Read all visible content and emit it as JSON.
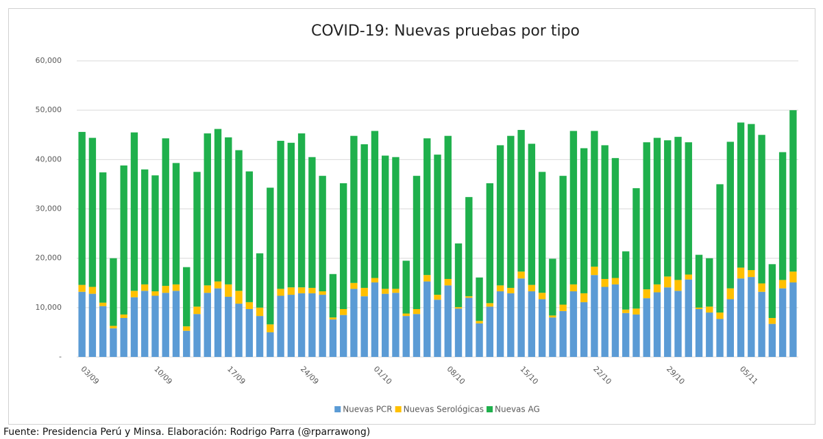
{
  "chart_data": {
    "type": "stacked_bar",
    "title": "COVID-19: Nuevas pruebas por tipo",
    "source": "Fuente: Presidencia Perú y Minsa. Elaboración: Rodrigo Parra (@rparrawong)",
    "categories": [
      "03/09",
      null,
      null,
      null,
      null,
      null,
      null,
      "10/09",
      null,
      null,
      null,
      null,
      null,
      null,
      "17/09",
      null,
      null,
      null,
      null,
      null,
      null,
      "24/09",
      null,
      null,
      null,
      null,
      null,
      null,
      "01/10",
      null,
      null,
      null,
      null,
      null,
      null,
      "08/10",
      null,
      null,
      null,
      null,
      null,
      null,
      "15/10",
      null,
      null,
      null,
      null,
      null,
      null,
      "22/10",
      null,
      null,
      null,
      null,
      null,
      null,
      "29/10",
      null,
      null,
      null,
      null,
      null,
      null,
      "05/11",
      null,
      null,
      null,
      null,
      null
    ],
    "series": [
      {
        "name": "Nuevas PCR",
        "color": "#5b9bd5",
        "values": [
          13200,
          12800,
          10300,
          5800,
          7900,
          12100,
          13400,
          12400,
          13000,
          13400,
          5300,
          8700,
          13000,
          13900,
          12200,
          10800,
          9700,
          8300,
          5000,
          12400,
          12600,
          12900,
          12900,
          12600,
          7600,
          8500,
          13800,
          12300,
          15100,
          12800,
          13000,
          8300,
          8700,
          15300,
          11600,
          14500,
          9800,
          12000,
          6800,
          10200,
          13300,
          12900,
          15900,
          13300,
          11700,
          8000,
          9300,
          13300,
          11100,
          16600,
          14200,
          14700,
          8900,
          8600,
          11900,
          13100,
          14100,
          13400,
          15700,
          9700,
          9000,
          7700,
          11700,
          15900,
          16200,
          13200,
          6700,
          13900,
          15100
        ]
      },
      {
        "name": "Nuevas Serológicas",
        "color": "#ffc000",
        "values": [
          1400,
          1400,
          700,
          500,
          700,
          1300,
          1300,
          900,
          1400,
          1300,
          900,
          1500,
          1500,
          1400,
          2500,
          2600,
          1400,
          1700,
          1600,
          1400,
          1500,
          1200,
          1100,
          700,
          400,
          1200,
          1200,
          1700,
          900,
          1000,
          800,
          500,
          1000,
          1300,
          1000,
          1300,
          300,
          300,
          500,
          700,
          1200,
          1100,
          1400,
          1300,
          1300,
          400,
          1300,
          1400,
          1800,
          1700,
          1600,
          1300,
          700,
          1200,
          1800,
          1600,
          2200,
          2200,
          1000,
          300,
          1200,
          1300,
          2200,
          2200,
          1400,
          1700,
          1200,
          1700,
          2200
        ]
      },
      {
        "name": "Nuevas AG",
        "color": "#1fb04c",
        "values": [
          31000,
          30200,
          26400,
          13700,
          30200,
          32100,
          23300,
          23500,
          29900,
          24600,
          12000,
          27300,
          30800,
          30900,
          29800,
          28500,
          26500,
          11000,
          27700,
          30000,
          29300,
          31200,
          26500,
          23400,
          8800,
          25500,
          29800,
          29100,
          29800,
          27000,
          26700,
          10700,
          27000,
          27700,
          28400,
          29000,
          12900,
          20100,
          8800,
          24300,
          28400,
          30800,
          28700,
          28600,
          24500,
          11500,
          26100,
          31100,
          29400,
          27500,
          27100,
          24300,
          11800,
          24400,
          29800,
          29700,
          27600,
          29000,
          26800,
          10700,
          9800,
          26000,
          29700,
          29400,
          29600,
          30100,
          10900,
          25900,
          32700
        ]
      }
    ],
    "ylim": [
      0,
      60000
    ],
    "yticks": [
      {
        "value": 0,
        "label": "-"
      },
      {
        "value": 10000,
        "label": "10,000"
      },
      {
        "value": 20000,
        "label": "20,000"
      },
      {
        "value": 30000,
        "label": "30,000"
      },
      {
        "value": 40000,
        "label": "40,000"
      },
      {
        "value": 50000,
        "label": "50,000"
      },
      {
        "value": 60000,
        "label": "60,000"
      }
    ],
    "grid": true,
    "legend": "bottom"
  }
}
